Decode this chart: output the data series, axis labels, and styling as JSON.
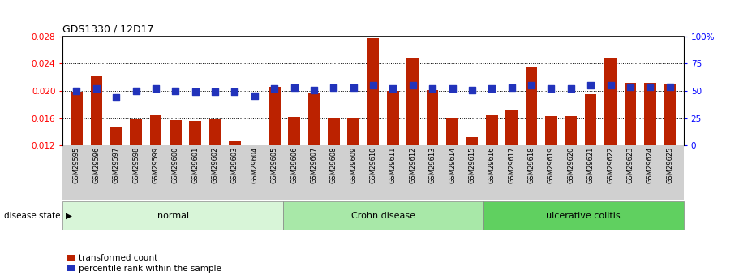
{
  "title": "GDS1330 / 12D17",
  "samples": [
    "GSM29595",
    "GSM29596",
    "GSM29597",
    "GSM29598",
    "GSM29599",
    "GSM29600",
    "GSM29601",
    "GSM29602",
    "GSM29603",
    "GSM29604",
    "GSM29605",
    "GSM29606",
    "GSM29607",
    "GSM29608",
    "GSM29609",
    "GSM29610",
    "GSM29611",
    "GSM29612",
    "GSM29613",
    "GSM29614",
    "GSM29615",
    "GSM29616",
    "GSM29617",
    "GSM29618",
    "GSM29619",
    "GSM29620",
    "GSM29621",
    "GSM29622",
    "GSM29623",
    "GSM29624",
    "GSM29625"
  ],
  "transformed_count": [
    0.01985,
    0.0221,
    0.0148,
    0.0159,
    0.0164,
    0.01575,
    0.0156,
    0.0159,
    0.01265,
    0.0121,
    0.0206,
    0.0162,
    0.0196,
    0.016,
    0.016,
    0.0278,
    0.02,
    0.0248,
    0.0201,
    0.016,
    0.0132,
    0.0165,
    0.0172,
    0.0236,
    0.0163,
    0.0163,
    0.0195,
    0.0248,
    0.0212,
    0.0212,
    0.021
  ],
  "percentile_rank": [
    50,
    52,
    44,
    50,
    52,
    50,
    49,
    49,
    49,
    46,
    52,
    53,
    51,
    53,
    53,
    55,
    52,
    55,
    52,
    52,
    51,
    52,
    53,
    55,
    52,
    52,
    55,
    55,
    54,
    54,
    54
  ],
  "group_list": [
    [
      "normal",
      0,
      10,
      "#d8f5d8"
    ],
    [
      "Crohn disease",
      11,
      20,
      "#a8e8a8"
    ],
    [
      "ulcerative colitis",
      21,
      30,
      "#60d060"
    ]
  ],
  "bar_color": "#bb2200",
  "dot_color": "#2233bb",
  "ylim_left": [
    0.012,
    0.028
  ],
  "ylim_right": [
    0,
    100
  ],
  "yticks_left": [
    0.012,
    0.016,
    0.02,
    0.024,
    0.028
  ],
  "yticks_right": [
    0,
    25,
    50,
    75,
    100
  ],
  "ylabel_right_labels": [
    "0",
    "25",
    "50",
    "75",
    "100%"
  ],
  "background_color": "#ffffff"
}
